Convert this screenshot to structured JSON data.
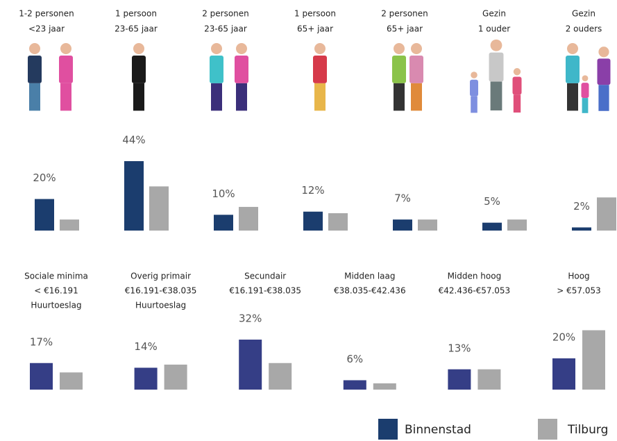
{
  "chart_data": [
    {
      "type": "bar",
      "categories": [
        [
          "1-2 personen",
          "<23 jaar"
        ],
        [
          "1 persoon",
          "23-65 jaar"
        ],
        [
          "2 personen",
          "23-65 jaar"
        ],
        [
          "1 persoon",
          "65+ jaar"
        ],
        [
          "2 personen",
          "65+ jaar"
        ],
        [
          "Gezin",
          "1 ouder"
        ],
        [
          "Gezin",
          "2 ouders"
        ]
      ],
      "series": [
        {
          "name": "Binnenstad",
          "color": "#1b3d6e",
          "values": [
            20,
            44,
            10,
            12,
            7,
            5,
            2
          ],
          "value_labels": [
            "20%",
            "44%",
            "10%",
            "12%",
            "7%",
            "5%",
            "2%"
          ]
        },
        {
          "name": "Tilburg",
          "color": "#a8a8a8",
          "values": [
            7,
            28,
            15,
            11,
            7,
            7,
            21
          ]
        }
      ],
      "ylim": [
        0,
        50
      ]
    },
    {
      "type": "bar",
      "categories": [
        [
          "Sociale minima",
          "< €16.191",
          "Huurtoeslag"
        ],
        [
          "Overig primair",
          "€16.191-€38.035",
          "Huurtoeslag"
        ],
        [
          "Secundair",
          "€16.191-€38.035"
        ],
        [
          "Midden laag",
          "€38.035-€42.436"
        ],
        [
          "Midden hoog",
          "€42.436-€57.053"
        ],
        [
          "Hoog",
          "> €57.053"
        ]
      ],
      "series": [
        {
          "name": "Binnenstad",
          "color": "#353e86",
          "values": [
            17,
            14,
            32,
            6,
            13,
            20
          ],
          "value_labels": [
            "17%",
            "14%",
            "32%",
            "6%",
            "13%",
            "20%"
          ]
        },
        {
          "name": "Tilburg",
          "color": "#a8a8a8",
          "values": [
            11,
            16,
            17,
            4,
            13,
            38
          ]
        }
      ],
      "ylim": [
        0,
        40
      ]
    }
  ],
  "legend": [
    {
      "name": "Binnenstad",
      "color": "#1b3d6e"
    },
    {
      "name": "Tilburg",
      "color": "#a8a8a8"
    }
  ]
}
